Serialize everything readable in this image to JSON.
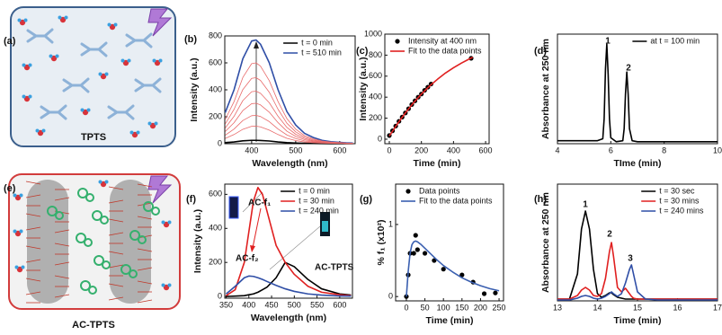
{
  "illustrations": [
    {
      "panel": "(a)",
      "label": "TPTS"
    },
    {
      "panel": "(e)",
      "label": "AC-TPTS"
    }
  ],
  "chart_data": [
    {
      "type": "line",
      "panel": "(b)",
      "x_label": "Wavelength (nm)",
      "y_label": "Intensity (a.u.)",
      "xlim": [
        339,
        635
      ],
      "ylim": [
        0,
        800
      ],
      "xticks": [
        400,
        500,
        600
      ],
      "yticks": [
        0,
        200,
        400,
        600,
        800
      ],
      "legend": "upper right",
      "x": [
        340,
        360,
        380,
        400,
        410,
        420,
        440,
        460,
        480,
        500,
        520,
        540,
        560,
        580,
        600,
        615,
        630
      ],
      "series": [
        {
          "name": "t = 0 min",
          "color": "#000000",
          "values": [
            8,
            13,
            21,
            25,
            25,
            24,
            20,
            13,
            8,
            5,
            3,
            2,
            1,
            0,
            0,
            0,
            0
          ]
        },
        {
          "name": "t = 510 min",
          "color": "#2f4ea6",
          "values": [
            231,
            400,
            631,
            762,
            770,
            739,
            601,
            400,
            239,
            139,
            77,
            46,
            25,
            15,
            10,
            6,
            5
          ]
        },
        {
          "color": "#e86a6a",
          "values": [
            180,
            312,
            492,
            594,
            600,
            576,
            468,
            312,
            186,
            108,
            60,
            36,
            20,
            12,
            8,
            5,
            4
          ]
        },
        {
          "color": "#e86a6a",
          "values": [
            147,
            255,
            402,
            485,
            490,
            470,
            382,
            255,
            152,
            88,
            49,
            29,
            16,
            10,
            6,
            4,
            3
          ]
        },
        {
          "color": "#e86a6a",
          "values": [
            117,
            203,
            320,
            386,
            390,
            374,
            304,
            203,
            121,
            70,
            39,
            23,
            13,
            8,
            5,
            3,
            2
          ]
        },
        {
          "color": "#e86a6a",
          "values": [
            90,
            156,
            246,
            297,
            300,
            288,
            234,
            156,
            93,
            54,
            30,
            18,
            10,
            6,
            4,
            2,
            2
          ]
        },
        {
          "color": "#e86a6a",
          "values": [
            63,
            109,
            172,
            208,
            210,
            202,
            164,
            109,
            65,
            38,
            21,
            13,
            7,
            4,
            3,
            2,
            1
          ]
        },
        {
          "color": "#e86a6a",
          "values": [
            39,
            68,
            107,
            129,
            130,
            125,
            101,
            68,
            40,
            23,
            13,
            8,
            4,
            3,
            2,
            1,
            1
          ]
        }
      ]
    },
    {
      "type": "scatter",
      "panel": "(c)",
      "x_label": "Time (min)",
      "y_label": "Intensity (a.u.)",
      "xlim": [
        -28,
        622
      ],
      "ylim": [
        -43,
        1000
      ],
      "xticks": [
        0,
        200,
        400,
        600
      ],
      "yticks": [
        0,
        200,
        400,
        600,
        800,
        1000
      ],
      "legend": "upper left",
      "series": [
        {
          "name": "Intensity at 400 nm",
          "mode": "markers",
          "color": "#000000",
          "x": [
            0,
            20,
            40,
            60,
            80,
            100,
            120,
            140,
            160,
            180,
            200,
            220,
            240,
            260,
            510
          ],
          "values": [
            35,
            80,
            125,
            170,
            210,
            250,
            290,
            330,
            365,
            400,
            430,
            465,
            495,
            525,
            770
          ]
        },
        {
          "name": "Fit to the data points",
          "mode": "line",
          "color": "#e02020",
          "x": [
            0,
            50,
            100,
            150,
            200,
            250,
            300,
            350,
            400,
            450,
            500,
            520
          ],
          "values": [
            30,
            145,
            250,
            345,
            430,
            505,
            570,
            630,
            680,
            725,
            765,
            780
          ]
        }
      ]
    },
    {
      "type": "line",
      "panel": "(d)",
      "x_label": "TIme (min)",
      "y_label": "Absorbance at 250 nm",
      "xlim": [
        4,
        10
      ],
      "ylim": [
        0,
        110
      ],
      "xticks": [
        4,
        6,
        8,
        10
      ],
      "legend": "upper right",
      "annotations": [
        "1",
        "2"
      ],
      "x": [
        4,
        5,
        5.5,
        5.7,
        5.75,
        5.8,
        5.85,
        5.9,
        5.95,
        6.0,
        6.2,
        6.45,
        6.5,
        6.55,
        6.6,
        6.65,
        6.7,
        6.8,
        7,
        8,
        9,
        10
      ],
      "series": [
        {
          "name": "at t = 100 min",
          "color": "#000000",
          "values": [
            3,
            3,
            3,
            5,
            25,
            75,
            100,
            70,
            25,
            6,
            2,
            3,
            15,
            50,
            72,
            50,
            15,
            3,
            2,
            2,
            2,
            2
          ]
        }
      ]
    },
    {
      "type": "line",
      "panel": "(f)",
      "x_label": "Wavelength (nm)",
      "y_label": "Intensity (a.u.)",
      "xlim": [
        347,
        628
      ],
      "ylim": [
        -10,
        660
      ],
      "xticks": [
        350,
        400,
        450,
        500,
        550,
        600
      ],
      "yticks": [
        0,
        200,
        400,
        600
      ],
      "legend": "upper right",
      "annotations": [
        "AC-f₁",
        "AC-f₂",
        "AC-TPTS"
      ],
      "x": [
        350,
        370,
        390,
        400,
        410,
        420,
        430,
        440,
        460,
        480,
        500,
        530,
        560,
        600,
        625
      ],
      "series": [
        {
          "name": "t = 0 min",
          "color": "#000000",
          "values": [
            0,
            2,
            5,
            10,
            15,
            25,
            40,
            55,
            110,
            200,
            175,
            100,
            45,
            15,
            8
          ]
        },
        {
          "name": "t = 30 min",
          "color": "#e02020",
          "values": [
            5,
            40,
            200,
            380,
            560,
            640,
            600,
            500,
            300,
            200,
            130,
            60,
            25,
            10,
            5
          ]
        },
        {
          "name": "t = 240 min",
          "color": "#2f4ea6",
          "values": [
            15,
            60,
            110,
            120,
            118,
            110,
            100,
            88,
            65,
            45,
            30,
            15,
            8,
            3,
            2
          ]
        }
      ]
    },
    {
      "type": "scatter",
      "panel": "(g)",
      "x_label": "Time (min)",
      "y_label": "% f₁ (x10²)",
      "xlim": [
        -29,
        262
      ],
      "ylim": [
        -0.06,
        1.56
      ],
      "xticks": [
        0,
        50,
        100,
        150,
        200,
        250
      ],
      "yticks": [
        0,
        1
      ],
      "legend": "upper left",
      "series": [
        {
          "name": "Data points",
          "mode": "markers",
          "color": "#000000",
          "x": [
            0,
            5,
            10,
            20,
            25,
            30,
            50,
            75,
            100,
            150,
            180,
            210,
            240
          ],
          "values": [
            0,
            0.3,
            0.6,
            0.6,
            0.85,
            0.65,
            0.6,
            0.5,
            0.38,
            0.3,
            0.2,
            0.04,
            0.05
          ]
        },
        {
          "name": "Fit to the data points",
          "mode": "line",
          "color": "#3a5fb0",
          "x": [
            0,
            5,
            10,
            15,
            20,
            25,
            30,
            40,
            60,
            80,
            100,
            125,
            150,
            175,
            200,
            225,
            250
          ],
          "values": [
            0,
            0.35,
            0.6,
            0.72,
            0.76,
            0.77,
            0.76,
            0.72,
            0.62,
            0.52,
            0.43,
            0.34,
            0.26,
            0.2,
            0.15,
            0.11,
            0.08
          ]
        }
      ]
    },
    {
      "type": "line",
      "panel": "(h)",
      "x_label": "Time (min)",
      "y_label": "Absorbance at 250 nm",
      "xlim": [
        13,
        17
      ],
      "ylim": [
        0,
        130
      ],
      "xticks": [
        13,
        14,
        15,
        16,
        17
      ],
      "legend": "upper right",
      "annotations": [
        "1",
        "2",
        "3"
      ],
      "x": [
        13,
        13.3,
        13.5,
        13.6,
        13.7,
        13.8,
        13.9,
        14.0,
        14.1,
        14.2,
        14.3,
        14.35,
        14.4,
        14.5,
        14.6,
        14.7,
        14.8,
        14.85,
        14.9,
        15.0,
        15.2,
        15.5,
        16,
        17
      ],
      "series": [
        {
          "name": "t = 30 sec",
          "color": "#000000",
          "values": [
            2,
            2,
            30,
            80,
            100,
            80,
            35,
            8,
            4,
            6,
            9,
            9,
            7,
            4,
            3,
            2,
            2,
            2,
            2,
            2,
            2,
            2,
            2,
            2
          ]
        },
        {
          "name": "t = 30 mins",
          "color": "#e02020",
          "values": [
            2,
            2,
            6,
            12,
            15,
            12,
            6,
            5,
            8,
            25,
            55,
            65,
            50,
            15,
            10,
            14,
            8,
            5,
            3,
            2,
            2,
            2,
            2,
            2
          ]
        },
        {
          "name": "t = 240 mins",
          "color": "#2f4ea6",
          "values": [
            1,
            1,
            3,
            5,
            6,
            5,
            3,
            2,
            3,
            5,
            8,
            10,
            8,
            5,
            8,
            20,
            35,
            40,
            30,
            10,
            2,
            1,
            1,
            1
          ]
        }
      ]
    }
  ]
}
